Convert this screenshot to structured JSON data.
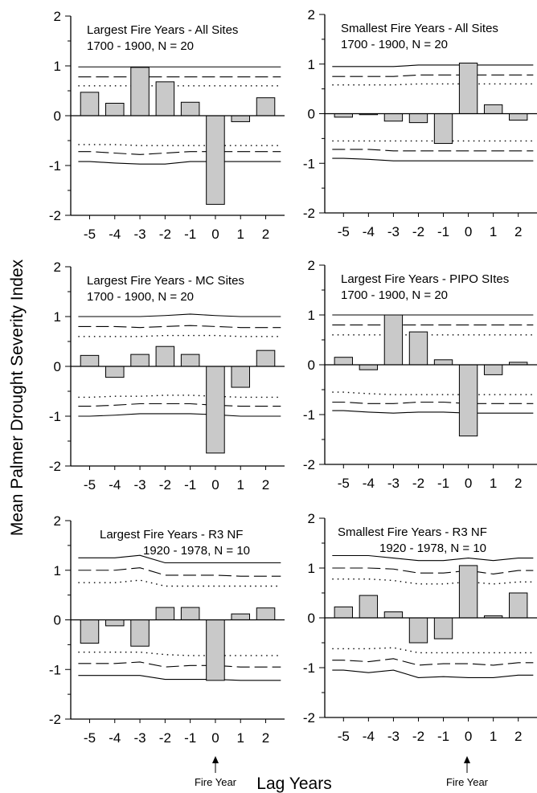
{
  "figure": {
    "ylabel": "Mean Palmer Drought Severity Index",
    "xlabel": "Lag Years",
    "fire_year_label": "Fire Year"
  },
  "chart_data": [
    {
      "type": "bar",
      "title": "Largest Fire Years - All Sites",
      "subtitle": "1700 - 1900, N = 20",
      "categories": [
        "-5",
        "-4",
        "-3",
        "-2",
        "-1",
        "0",
        "1",
        "2"
      ],
      "values": [
        0.47,
        0.25,
        0.97,
        0.68,
        0.27,
        -1.78,
        -0.12,
        0.36
      ],
      "ylim": [
        -2,
        2
      ],
      "yticks": [
        "2",
        "1",
        "0",
        "-1",
        "-2"
      ],
      "bands": {
        "solid_upper": [
          0.98,
          0.98,
          0.98,
          0.98,
          0.98,
          0.98,
          0.98,
          0.98
        ],
        "dashed_upper": [
          0.78,
          0.78,
          0.78,
          0.78,
          0.78,
          0.78,
          0.78,
          0.78
        ],
        "dotted_upper": [
          0.6,
          0.6,
          0.6,
          0.6,
          0.6,
          0.6,
          0.6,
          0.6
        ],
        "dotted_lower": [
          -0.58,
          -0.58,
          -0.6,
          -0.6,
          -0.6,
          -0.6,
          -0.6,
          -0.6
        ],
        "dashed_lower": [
          -0.72,
          -0.75,
          -0.78,
          -0.75,
          -0.72,
          -0.72,
          -0.72,
          -0.72
        ],
        "solid_lower": [
          -0.92,
          -0.95,
          -0.97,
          -0.97,
          -0.92,
          -0.92,
          -0.92,
          -0.92
        ]
      }
    },
    {
      "type": "bar",
      "title": "Smallest Fire Years - All Sites",
      "subtitle": "1700 - 1900, N = 20",
      "categories": [
        "-5",
        "-4",
        "-3",
        "-2",
        "-1",
        "0",
        "1",
        "2"
      ],
      "values": [
        -0.07,
        -0.02,
        -0.15,
        -0.18,
        -0.6,
        1.02,
        0.18,
        -0.13
      ],
      "ylim": [
        -2,
        2
      ],
      "yticks": [
        "2",
        "1",
        "0",
        "-1",
        "-2"
      ],
      "bands": {
        "solid_upper": [
          0.95,
          0.95,
          0.95,
          0.98,
          0.98,
          0.98,
          0.98,
          0.98
        ],
        "dashed_upper": [
          0.75,
          0.75,
          0.75,
          0.78,
          0.78,
          0.78,
          0.78,
          0.78
        ],
        "dotted_upper": [
          0.58,
          0.58,
          0.58,
          0.6,
          0.6,
          0.6,
          0.6,
          0.6
        ],
        "dotted_lower": [
          -0.55,
          -0.55,
          -0.55,
          -0.55,
          -0.55,
          -0.55,
          -0.55,
          -0.55
        ],
        "dashed_lower": [
          -0.72,
          -0.72,
          -0.75,
          -0.75,
          -0.75,
          -0.75,
          -0.75,
          -0.75
        ],
        "solid_lower": [
          -0.9,
          -0.92,
          -0.95,
          -0.95,
          -0.95,
          -0.95,
          -0.95,
          -0.95
        ]
      }
    },
    {
      "type": "bar",
      "title": "Largest Fire Years - MC Sites",
      "subtitle": "1700 - 1900, N = 20",
      "categories": [
        "-5",
        "-4",
        "-3",
        "-2",
        "-1",
        "0",
        "1",
        "2"
      ],
      "values": [
        0.22,
        -0.22,
        0.24,
        0.4,
        0.24,
        -1.74,
        -0.42,
        0.32
      ],
      "ylim": [
        -2,
        2
      ],
      "yticks": [
        "2",
        "1",
        "0",
        "-1",
        "-2"
      ],
      "bands": {
        "solid_upper": [
          1.0,
          1.0,
          1.0,
          1.02,
          1.05,
          1.02,
          1.0,
          1.0
        ],
        "dashed_upper": [
          0.8,
          0.8,
          0.78,
          0.8,
          0.82,
          0.8,
          0.78,
          0.78
        ],
        "dotted_upper": [
          0.6,
          0.6,
          0.6,
          0.62,
          0.62,
          0.62,
          0.6,
          0.6
        ],
        "dotted_lower": [
          -0.62,
          -0.6,
          -0.6,
          -0.58,
          -0.58,
          -0.6,
          -0.62,
          -0.62
        ],
        "dashed_lower": [
          -0.8,
          -0.78,
          -0.75,
          -0.75,
          -0.75,
          -0.78,
          -0.8,
          -0.8
        ],
        "solid_lower": [
          -1.0,
          -0.98,
          -0.95,
          -0.95,
          -0.95,
          -0.97,
          -1.0,
          -1.0
        ]
      }
    },
    {
      "type": "bar",
      "title": "Largest Fire Years - PIPO SItes",
      "subtitle": "1700 - 1900, N = 20",
      "categories": [
        "-5",
        "-4",
        "-3",
        "-2",
        "-1",
        "0",
        "1",
        "2"
      ],
      "values": [
        0.15,
        -0.1,
        1.0,
        0.66,
        0.1,
        -1.43,
        -0.2,
        0.05
      ],
      "ylim": [
        -2,
        2
      ],
      "yticks": [
        "2",
        "1",
        "0",
        "-1",
        "-2"
      ],
      "bands": {
        "solid_upper": [
          1.0,
          1.0,
          1.0,
          1.0,
          1.0,
          1.0,
          1.0,
          1.0
        ],
        "dashed_upper": [
          0.8,
          0.8,
          0.8,
          0.8,
          0.8,
          0.8,
          0.8,
          0.8
        ],
        "dotted_upper": [
          0.6,
          0.6,
          0.6,
          0.6,
          0.6,
          0.6,
          0.6,
          0.6
        ],
        "dotted_lower": [
          -0.55,
          -0.58,
          -0.6,
          -0.6,
          -0.6,
          -0.6,
          -0.6,
          -0.6
        ],
        "dashed_lower": [
          -0.75,
          -0.78,
          -0.78,
          -0.75,
          -0.75,
          -0.78,
          -0.78,
          -0.78
        ],
        "solid_lower": [
          -0.92,
          -0.95,
          -0.97,
          -0.95,
          -0.95,
          -0.97,
          -0.97,
          -0.97
        ]
      }
    },
    {
      "type": "bar",
      "title": "Largest Fire Years - R3 NF",
      "subtitle": "1920 - 1978, N = 10",
      "categories": [
        "-5",
        "-4",
        "-3",
        "-2",
        "-1",
        "0",
        "1",
        "2"
      ],
      "values": [
        -0.47,
        -0.12,
        -0.53,
        0.25,
        0.25,
        -1.22,
        0.12,
        0.24
      ],
      "ylim": [
        -2,
        2
      ],
      "yticks": [
        "2",
        "1",
        "0",
        "-1",
        "-2"
      ],
      "bands": {
        "solid_upper": [
          1.25,
          1.25,
          1.3,
          1.15,
          1.15,
          1.15,
          1.15,
          1.15
        ],
        "dashed_upper": [
          1.0,
          1.0,
          1.05,
          0.9,
          0.9,
          0.9,
          0.88,
          0.88
        ],
        "dotted_upper": [
          0.75,
          0.75,
          0.8,
          0.68,
          0.68,
          0.68,
          0.68,
          0.68
        ],
        "dotted_lower": [
          -0.65,
          -0.65,
          -0.65,
          -0.7,
          -0.72,
          -0.72,
          -0.72,
          -0.72
        ],
        "dashed_lower": [
          -0.88,
          -0.88,
          -0.85,
          -0.95,
          -0.92,
          -0.92,
          -0.95,
          -0.95
        ],
        "solid_lower": [
          -1.12,
          -1.12,
          -1.12,
          -1.2,
          -1.2,
          -1.2,
          -1.22,
          -1.22
        ]
      }
    },
    {
      "type": "bar",
      "title": "Smallest Fire Years - R3 NF",
      "subtitle": "1920 - 1978, N = 10",
      "categories": [
        "-5",
        "-4",
        "-3",
        "-2",
        "-1",
        "0",
        "1",
        "2"
      ],
      "values": [
        0.22,
        0.45,
        0.12,
        -0.5,
        -0.42,
        1.05,
        0.04,
        0.5
      ],
      "ylim": [
        -2,
        2
      ],
      "yticks": [
        "2",
        "1",
        "0",
        "-1",
        "-2"
      ],
      "bands": {
        "solid_upper": [
          1.25,
          1.25,
          1.2,
          1.15,
          1.15,
          1.2,
          1.15,
          1.2
        ],
        "dashed_upper": [
          1.0,
          1.0,
          0.98,
          0.9,
          0.9,
          0.95,
          0.88,
          0.95
        ],
        "dotted_upper": [
          0.78,
          0.78,
          0.75,
          0.68,
          0.68,
          0.72,
          0.68,
          0.72
        ],
        "dotted_lower": [
          -0.62,
          -0.62,
          -0.6,
          -0.7,
          -0.7,
          -0.7,
          -0.7,
          -0.7
        ],
        "dashed_lower": [
          -0.85,
          -0.88,
          -0.82,
          -0.95,
          -0.92,
          -0.92,
          -0.95,
          -0.9
        ],
        "solid_lower": [
          -1.05,
          -1.1,
          -1.05,
          -1.2,
          -1.18,
          -1.2,
          -1.2,
          -1.15
        ]
      }
    }
  ]
}
